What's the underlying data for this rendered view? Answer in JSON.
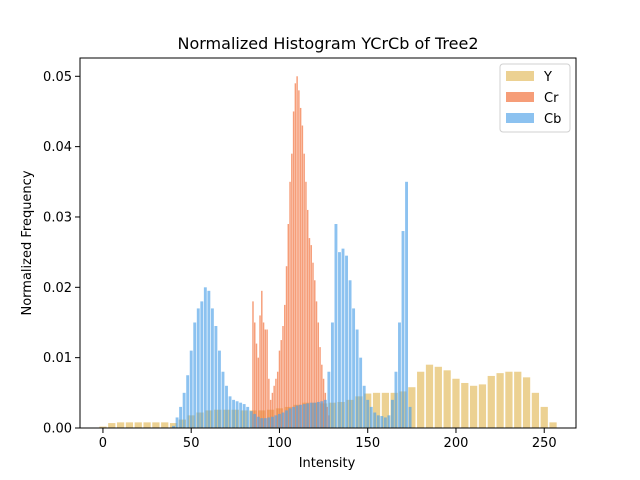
{
  "chart_data": {
    "type": "bar",
    "title": "Normalized Histogram YCrCb of Tree2",
    "xlabel": "Intensity",
    "ylabel": "Normalized Frequency",
    "xlim": [
      -13,
      268
    ],
    "ylim": [
      0,
      0.0526
    ],
    "xticks": [
      0,
      50,
      100,
      150,
      200,
      250
    ],
    "yticks": [
      0.0,
      0.01,
      0.02,
      0.03,
      0.04,
      0.05
    ],
    "ytick_labels": [
      "0.00",
      "0.01",
      "0.02",
      "0.03",
      "0.04",
      "0.05"
    ],
    "legend_position": "top-right",
    "series": [
      {
        "name": "Y",
        "color": "#e6c26e",
        "opacity": 0.75,
        "x": [
          0,
          5,
          10,
          15,
          20,
          25,
          30,
          35,
          40,
          45,
          50,
          55,
          60,
          65,
          70,
          75,
          80,
          85,
          90,
          95,
          100,
          105,
          110,
          115,
          120,
          125,
          130,
          135,
          140,
          145,
          150,
          155,
          160,
          165,
          170,
          175,
          180,
          185,
          190,
          195,
          200,
          205,
          210,
          215,
          220,
          225,
          230,
          235,
          240,
          245,
          250,
          255
        ],
        "values": [
          0.0002,
          0.0007,
          0.0008,
          0.0008,
          0.0008,
          0.0008,
          0.0008,
          0.0008,
          0.0007,
          0.0012,
          0.0018,
          0.0022,
          0.0025,
          0.0026,
          0.0026,
          0.0026,
          0.0025,
          0.0025,
          0.0025,
          0.0026,
          0.0028,
          0.003,
          0.0033,
          0.0036,
          0.0036,
          0.0035,
          0.0036,
          0.0037,
          0.004,
          0.0045,
          0.0049,
          0.005,
          0.005,
          0.005,
          0.0052,
          0.0058,
          0.008,
          0.009,
          0.0087,
          0.0082,
          0.007,
          0.0064,
          0.006,
          0.0062,
          0.0074,
          0.0078,
          0.008,
          0.008,
          0.0072,
          0.005,
          0.003,
          0.0008
        ]
      },
      {
        "name": "Cr",
        "color": "#f2743e",
        "opacity": 0.7,
        "x": [
          85,
          86,
          87,
          88,
          89,
          90,
          91,
          92,
          93,
          94,
          95,
          96,
          97,
          98,
          99,
          100,
          101,
          102,
          103,
          104,
          105,
          106,
          107,
          108,
          109,
          110,
          111,
          112,
          113,
          114,
          115,
          116,
          117,
          118,
          119,
          120,
          121,
          122,
          123,
          124,
          125,
          126,
          127,
          128
        ],
        "values": [
          0.018,
          0.015,
          0.012,
          0.01,
          0.016,
          0.0195,
          0.015,
          0.014,
          0.014,
          0.007,
          0.004,
          0.005,
          0.006,
          0.007,
          0.008,
          0.011,
          0.0125,
          0.0145,
          0.0175,
          0.023,
          0.029,
          0.035,
          0.039,
          0.045,
          0.049,
          0.05,
          0.048,
          0.0455,
          0.043,
          0.039,
          0.035,
          0.031,
          0.027,
          0.026,
          0.0235,
          0.021,
          0.018,
          0.015,
          0.0115,
          0.009,
          0.007,
          0.005,
          0.003,
          0.0018
        ]
      },
      {
        "name": "Cb",
        "color": "#4ea2e8",
        "opacity": 0.65,
        "x": [
          40,
          42,
          44,
          46,
          48,
          50,
          52,
          54,
          56,
          58,
          60,
          62,
          64,
          66,
          68,
          70,
          72,
          74,
          76,
          78,
          80,
          82,
          84,
          86,
          88,
          90,
          92,
          94,
          96,
          98,
          100,
          102,
          104,
          106,
          108,
          110,
          112,
          114,
          116,
          118,
          120,
          122,
          124,
          126,
          128,
          130,
          132,
          134,
          136,
          138,
          140,
          142,
          144,
          146,
          148,
          150,
          152,
          154,
          156,
          158,
          160,
          162,
          164,
          166,
          168,
          170,
          172,
          174
        ],
        "values": [
          0.0003,
          0.0015,
          0.003,
          0.005,
          0.0075,
          0.011,
          0.015,
          0.017,
          0.018,
          0.02,
          0.0195,
          0.017,
          0.0145,
          0.011,
          0.008,
          0.006,
          0.0045,
          0.004,
          0.0038,
          0.0036,
          0.0034,
          0.003,
          0.0024,
          0.002,
          0.0016,
          0.0014,
          0.0014,
          0.0015,
          0.0016,
          0.0018,
          0.002,
          0.0022,
          0.0025,
          0.0028,
          0.003,
          0.0032,
          0.0033,
          0.0034,
          0.0035,
          0.0036,
          0.0036,
          0.0037,
          0.0038,
          0.004,
          0.008,
          0.015,
          0.029,
          0.025,
          0.0255,
          0.0245,
          0.021,
          0.017,
          0.014,
          0.01,
          0.006,
          0.004,
          0.003,
          0.0022,
          0.0018,
          0.0017,
          0.0015,
          0.0018,
          0.004,
          0.008,
          0.015,
          0.028,
          0.035,
          0.003
        ]
      }
    ]
  }
}
